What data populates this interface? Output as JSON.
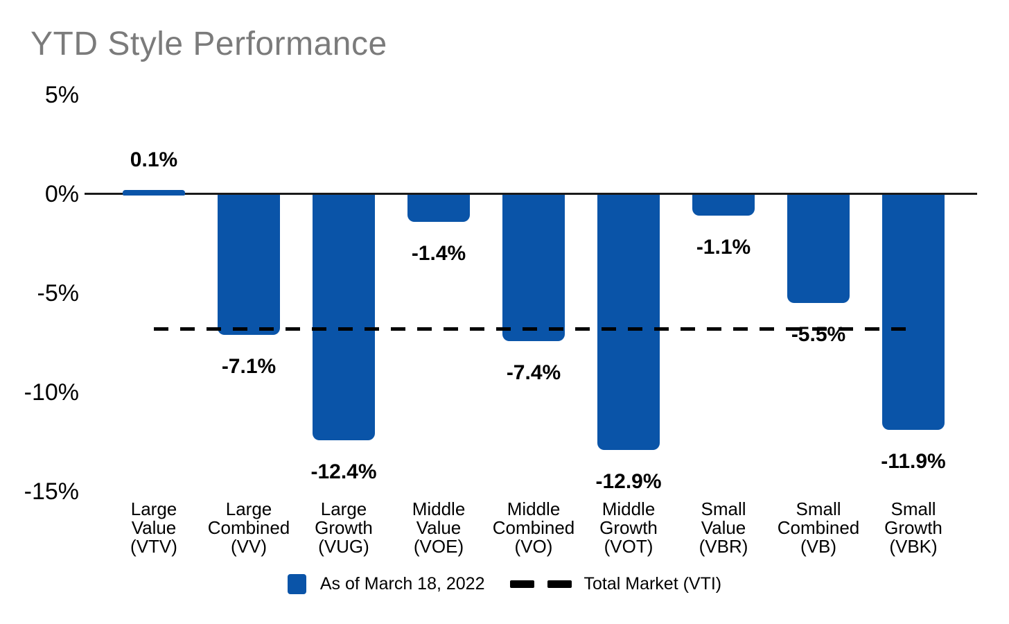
{
  "title": "YTD Style Performance",
  "colors": {
    "bar": "#0A54A8",
    "title_text": "#7B7B7B",
    "axis": "#1A1A1A",
    "reference_line": "#000000",
    "background": "#FFFFFF"
  },
  "chart_data": {
    "type": "bar",
    "title": "YTD Style Performance",
    "categories": [
      "Large Value (VTV)",
      "Large Combined (VV)",
      "Large Growth (VUG)",
      "Middle Value (VOE)",
      "Middle Combined (VO)",
      "Middle Growth (VOT)",
      "Small Value (VBR)",
      "Small Combined (VB)",
      "Small Growth (VBK)"
    ],
    "category_label_lines": [
      [
        "Large",
        "Value",
        "(VTV)"
      ],
      [
        "Large",
        "Combined",
        "(VV)"
      ],
      [
        "Large",
        "Growth",
        "(VUG)"
      ],
      [
        "Middle",
        "Value",
        "(VOE)"
      ],
      [
        "Middle",
        "Combined",
        "(VO)"
      ],
      [
        "Middle",
        "Growth",
        "(VOT)"
      ],
      [
        "Small",
        "Value",
        "(VBR)"
      ],
      [
        "Small",
        "Combined",
        "(VB)"
      ],
      [
        "Small",
        "Growth",
        "(VBK)"
      ]
    ],
    "tickers": [
      "VTV",
      "VV",
      "VUG",
      "VOE",
      "VO",
      "VOT",
      "VBR",
      "VB",
      "VBK"
    ],
    "values": [
      0.1,
      -7.1,
      -12.4,
      -1.4,
      -7.4,
      -12.9,
      -1.1,
      -5.5,
      -11.9
    ],
    "value_labels": [
      "0.1%",
      "-7.1%",
      "-12.4%",
      "-1.4%",
      "-7.4%",
      "-12.9%",
      "-1.1%",
      "-5.5%",
      "-11.9%"
    ],
    "series_name": "As of March 18, 2022",
    "reference_line": {
      "name": "Total Market (VTI)",
      "value": -6.8,
      "style": "dashed"
    },
    "y_axis": {
      "ticks": [
        {
          "label": "5%",
          "value": 5
        },
        {
          "label": "0%",
          "value": 0
        },
        {
          "label": "-5%",
          "value": -5
        },
        {
          "label": "-10%",
          "value": -10
        },
        {
          "label": "-15%",
          "value": -15
        }
      ],
      "range": [
        -15,
        5
      ]
    },
    "xlabel": "",
    "ylabel": "",
    "grid": false,
    "legend_position": "bottom"
  }
}
